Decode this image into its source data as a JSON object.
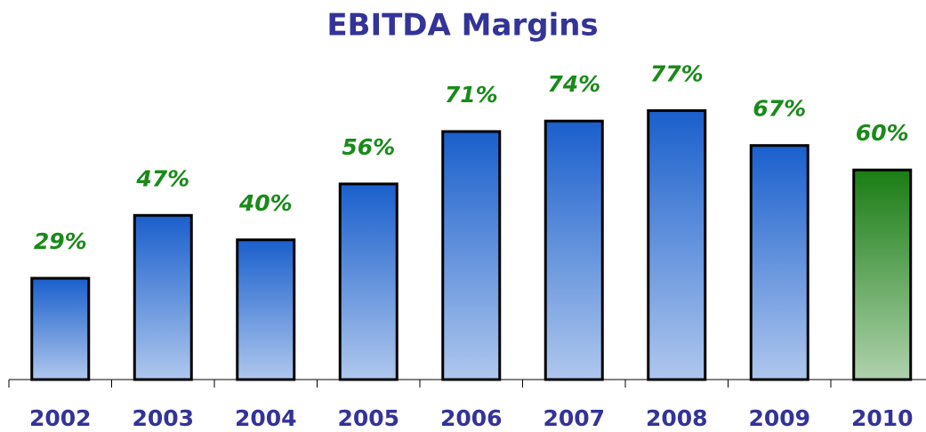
{
  "chart_data": {
    "type": "bar",
    "title": "EBITDA Margins",
    "categories": [
      "2002",
      "2003",
      "2004",
      "2005",
      "2006",
      "2007",
      "2008",
      "2009",
      "2010"
    ],
    "values": [
      29,
      47,
      40,
      56,
      71,
      74,
      77,
      67,
      60
    ],
    "value_labels": [
      "29%",
      "47%",
      "40%",
      "56%",
      "71%",
      "74%",
      "77%",
      "67%",
      "60%"
    ],
    "colors": [
      "#1a5fcc",
      "#1a5fcc",
      "#1a5fcc",
      "#1a5fcc",
      "#1a5fcc",
      "#1a5fcc",
      "#1a5fcc",
      "#1a5fcc",
      "#1a7d14"
    ]
  }
}
